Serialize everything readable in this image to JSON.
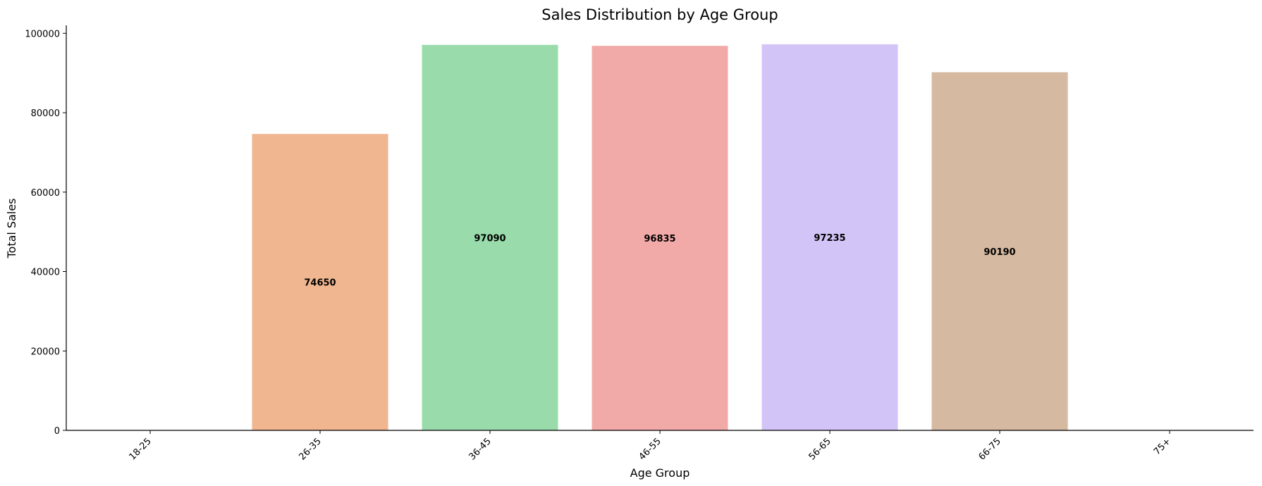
{
  "chart_data": {
    "type": "bar",
    "title": "Sales Distribution by Age Group",
    "xlabel": "Age Group",
    "ylabel": "Total Sales",
    "categories": [
      "18-25",
      "26-35",
      "36-45",
      "46-55",
      "56-65",
      "66-75",
      "75+"
    ],
    "values": [
      0,
      74650,
      97090,
      96835,
      97235,
      90190,
      0
    ],
    "data_labels": [
      "",
      "74650",
      "97090",
      "96835",
      "97235",
      "90190",
      ""
    ],
    "colors": [
      "#a1c9f4",
      "#f0b690",
      "#99dbaa",
      "#f2aaa8",
      "#d2c4f6",
      "#d5b9a1",
      "#f5bfe3"
    ],
    "ylim": [
      0,
      102000
    ],
    "yticks": [
      0,
      20000,
      40000,
      60000,
      80000,
      100000
    ],
    "ytick_labels": [
      "0",
      "20000",
      "40000",
      "60000",
      "80000",
      "100000"
    ],
    "grid": false,
    "legend": "none"
  }
}
